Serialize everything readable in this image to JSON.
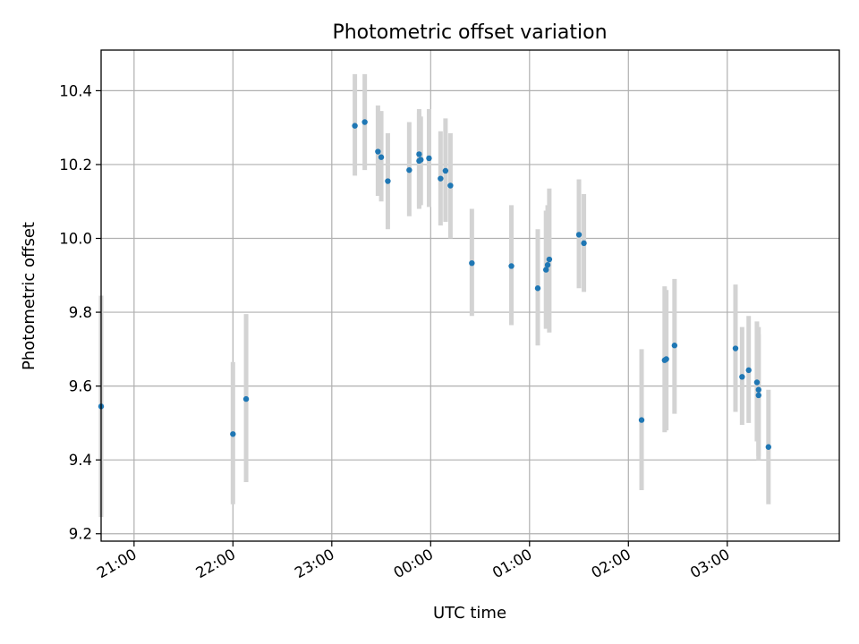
{
  "chart_data": {
    "type": "scatter",
    "title": "Photometric offset variation",
    "xlabel": "UTC time",
    "ylabel": "Photometric offset",
    "x_axis_kind": "time",
    "xlim": [
      "20:40",
      "04:08"
    ],
    "ylim": [
      9.18,
      10.51
    ],
    "x_ticks": [
      "21:00",
      "22:00",
      "23:00",
      "00:00",
      "01:00",
      "02:00",
      "03:00"
    ],
    "y_ticks": [
      "9.2",
      "9.4",
      "9.6",
      "9.8",
      "10.0",
      "10.2",
      "10.4"
    ],
    "grid": true,
    "colors": {
      "point": "#1f77b4",
      "errorbar": "#d3d3d3",
      "grid": "#b0b0b0"
    },
    "points": [
      {
        "x": "20:40",
        "y": 9.545,
        "yerr_low": 9.245,
        "yerr_high": 9.845
      },
      {
        "x": "22:00",
        "y": 9.47,
        "yerr_low": 9.28,
        "yerr_high": 9.665
      },
      {
        "x": "22:08",
        "y": 9.565,
        "yerr_low": 9.34,
        "yerr_high": 9.795
      },
      {
        "x": "23:14",
        "y": 10.305,
        "yerr_low": 10.17,
        "yerr_high": 10.445
      },
      {
        "x": "23:20",
        "y": 10.315,
        "yerr_low": 10.185,
        "yerr_high": 10.445
      },
      {
        "x": "23:28",
        "y": 10.235,
        "yerr_low": 10.115,
        "yerr_high": 10.36
      },
      {
        "x": "23:30",
        "y": 10.22,
        "yerr_low": 10.1,
        "yerr_high": 10.345
      },
      {
        "x": "23:34",
        "y": 10.155,
        "yerr_low": 10.025,
        "yerr_high": 10.285
      },
      {
        "x": "23:47",
        "y": 10.185,
        "yerr_low": 10.06,
        "yerr_high": 10.315
      },
      {
        "x": "23:53",
        "y": 10.21,
        "yerr_low": 10.08,
        "yerr_high": 10.35
      },
      {
        "x": "23:53",
        "y": 10.228,
        "yerr_low": 10.085,
        "yerr_high": 10.34
      },
      {
        "x": "23:54",
        "y": 10.213,
        "yerr_low": 10.09,
        "yerr_high": 10.33
      },
      {
        "x": "23:59",
        "y": 10.217,
        "yerr_low": 10.085,
        "yerr_high": 10.35
      },
      {
        "x": "00:06",
        "y": 10.162,
        "yerr_low": 10.035,
        "yerr_high": 10.29
      },
      {
        "x": "00:09",
        "y": 10.183,
        "yerr_low": 10.045,
        "yerr_high": 10.325
      },
      {
        "x": "00:12",
        "y": 10.143,
        "yerr_low": 10.0,
        "yerr_high": 10.285
      },
      {
        "x": "00:25",
        "y": 9.933,
        "yerr_low": 9.79,
        "yerr_high": 10.08
      },
      {
        "x": "00:49",
        "y": 9.925,
        "yerr_low": 9.765,
        "yerr_high": 10.09
      },
      {
        "x": "01:05",
        "y": 9.865,
        "yerr_low": 9.71,
        "yerr_high": 10.025
      },
      {
        "x": "01:10",
        "y": 9.915,
        "yerr_low": 9.755,
        "yerr_high": 10.075
      },
      {
        "x": "01:11",
        "y": 9.928,
        "yerr_low": 9.765,
        "yerr_high": 10.09
      },
      {
        "x": "01:12",
        "y": 9.943,
        "yerr_low": 9.745,
        "yerr_high": 10.135
      },
      {
        "x": "01:30",
        "y": 10.01,
        "yerr_low": 9.865,
        "yerr_high": 10.16
      },
      {
        "x": "01:33",
        "y": 9.987,
        "yerr_low": 9.855,
        "yerr_high": 10.12
      },
      {
        "x": "02:08",
        "y": 9.508,
        "yerr_low": 9.318,
        "yerr_high": 9.7
      },
      {
        "x": "02:22",
        "y": 9.67,
        "yerr_low": 9.475,
        "yerr_high": 9.87
      },
      {
        "x": "02:23",
        "y": 9.673,
        "yerr_low": 9.48,
        "yerr_high": 9.86
      },
      {
        "x": "02:28",
        "y": 9.71,
        "yerr_low": 9.525,
        "yerr_high": 9.89
      },
      {
        "x": "03:05",
        "y": 9.702,
        "yerr_low": 9.53,
        "yerr_high": 9.875
      },
      {
        "x": "03:09",
        "y": 9.625,
        "yerr_low": 9.495,
        "yerr_high": 9.76
      },
      {
        "x": "03:13",
        "y": 9.643,
        "yerr_low": 9.5,
        "yerr_high": 9.79
      },
      {
        "x": "03:18",
        "y": 9.61,
        "yerr_low": 9.45,
        "yerr_high": 9.775
      },
      {
        "x": "03:19",
        "y": 9.59,
        "yerr_low": 9.4,
        "yerr_high": 9.76
      },
      {
        "x": "03:19",
        "y": 9.575,
        "yerr_low": 9.41,
        "yerr_high": 9.74
      },
      {
        "x": "03:25",
        "y": 9.435,
        "yerr_low": 9.28,
        "yerr_high": 9.59
      }
    ]
  }
}
